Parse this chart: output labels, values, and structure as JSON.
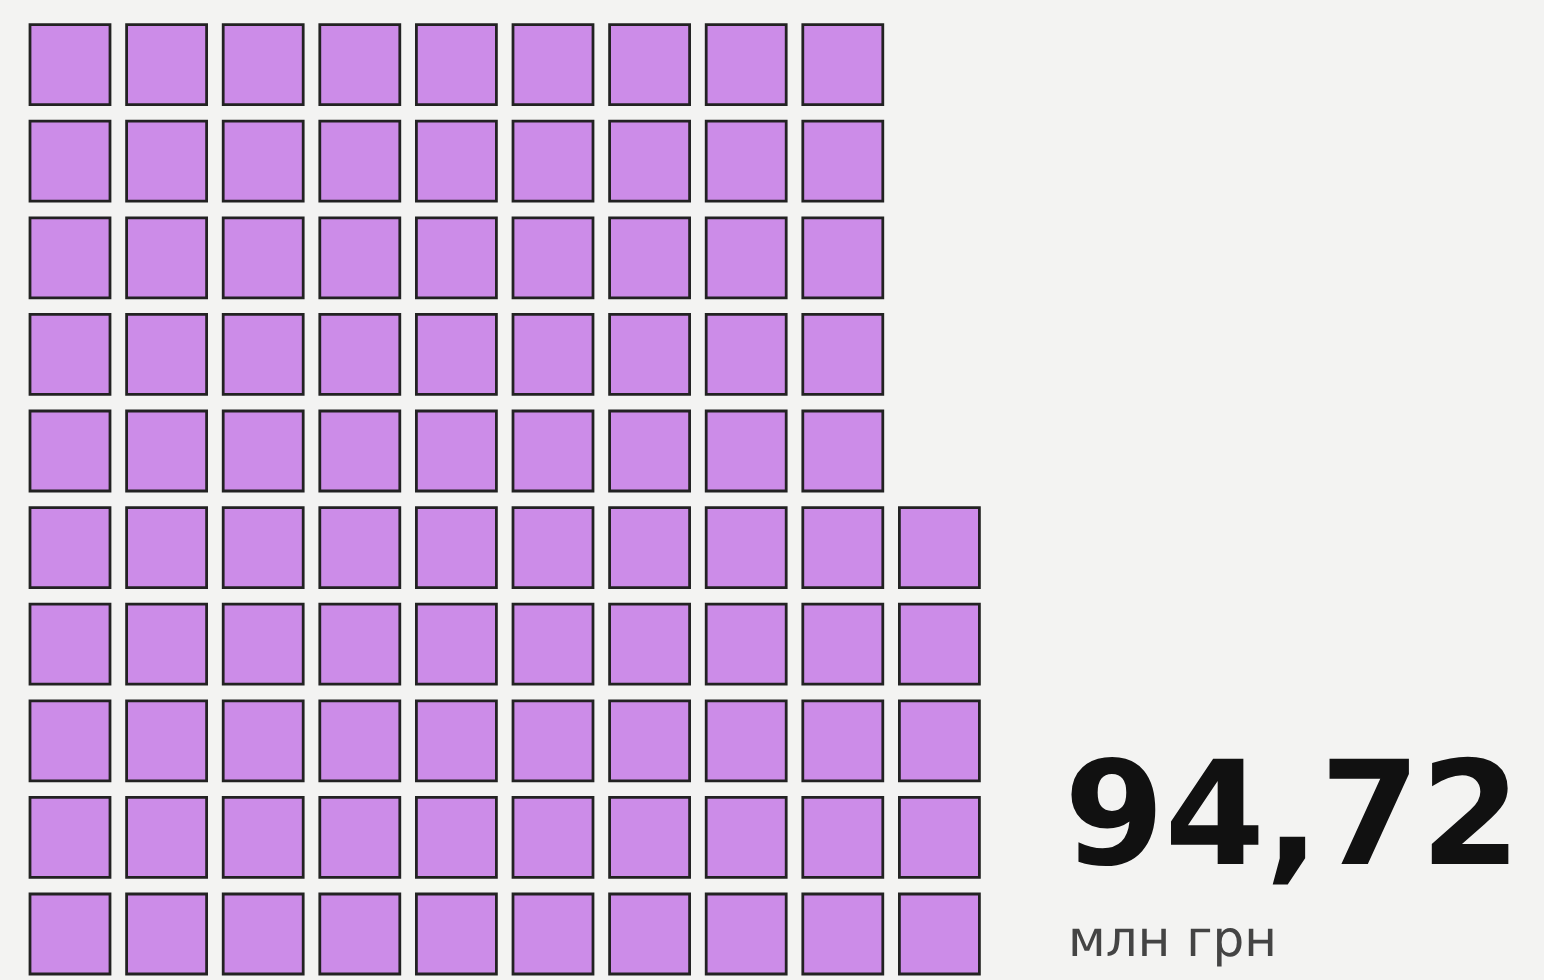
{
  "chart_data": {
    "type": "other",
    "values": [
      94.72
    ],
    "value_labels": [
      "94,72"
    ],
    "color": "#cc8ce8",
    "annotations": [
      "млн грн"
    ]
  }
}
